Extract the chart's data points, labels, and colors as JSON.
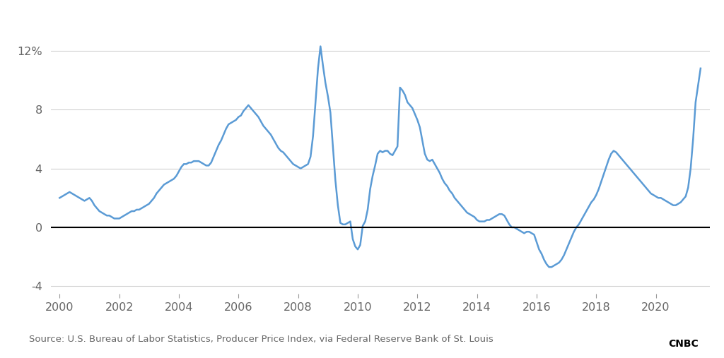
{
  "title": "",
  "source_text": "Source: U.S. Bureau of Labor Statistics, Producer Price Index, via Federal Reserve Bank of St. Louis",
  "line_color": "#5b9bd5",
  "background_color": "#ffffff",
  "ylim": [
    -4.5,
    13.5
  ],
  "yticks": [
    -4,
    0,
    4,
    8,
    12
  ],
  "ytick_labels": [
    "-4",
    "0",
    "4",
    "8",
    "12%"
  ],
  "xlim": [
    1999.7,
    2021.8
  ],
  "xticks": [
    2000,
    2002,
    2004,
    2006,
    2008,
    2010,
    2012,
    2014,
    2016,
    2018,
    2020
  ],
  "grid_color": "#d0d0d0",
  "zero_line_color": "#000000",
  "line_width": 1.8,
  "x": [
    2000.0,
    2000.083,
    2000.167,
    2000.25,
    2000.333,
    2000.417,
    2000.5,
    2000.583,
    2000.667,
    2000.75,
    2000.833,
    2000.917,
    2001.0,
    2001.083,
    2001.167,
    2001.25,
    2001.333,
    2001.417,
    2001.5,
    2001.583,
    2001.667,
    2001.75,
    2001.833,
    2001.917,
    2002.0,
    2002.083,
    2002.167,
    2002.25,
    2002.333,
    2002.417,
    2002.5,
    2002.583,
    2002.667,
    2002.75,
    2002.833,
    2002.917,
    2003.0,
    2003.083,
    2003.167,
    2003.25,
    2003.333,
    2003.417,
    2003.5,
    2003.583,
    2003.667,
    2003.75,
    2003.833,
    2003.917,
    2004.0,
    2004.083,
    2004.167,
    2004.25,
    2004.333,
    2004.417,
    2004.5,
    2004.583,
    2004.667,
    2004.75,
    2004.833,
    2004.917,
    2005.0,
    2005.083,
    2005.167,
    2005.25,
    2005.333,
    2005.417,
    2005.5,
    2005.583,
    2005.667,
    2005.75,
    2005.833,
    2005.917,
    2006.0,
    2006.083,
    2006.167,
    2006.25,
    2006.333,
    2006.417,
    2006.5,
    2006.583,
    2006.667,
    2006.75,
    2006.833,
    2006.917,
    2007.0,
    2007.083,
    2007.167,
    2007.25,
    2007.333,
    2007.417,
    2007.5,
    2007.583,
    2007.667,
    2007.75,
    2007.833,
    2007.917,
    2008.0,
    2008.083,
    2008.167,
    2008.25,
    2008.333,
    2008.417,
    2008.5,
    2008.583,
    2008.667,
    2008.75,
    2008.833,
    2008.917,
    2009.0,
    2009.083,
    2009.167,
    2009.25,
    2009.333,
    2009.417,
    2009.5,
    2009.583,
    2009.667,
    2009.75,
    2009.833,
    2009.917,
    2010.0,
    2010.083,
    2010.167,
    2010.25,
    2010.333,
    2010.417,
    2010.5,
    2010.583,
    2010.667,
    2010.75,
    2010.833,
    2010.917,
    2011.0,
    2011.083,
    2011.167,
    2011.25,
    2011.333,
    2011.417,
    2011.5,
    2011.583,
    2011.667,
    2011.75,
    2011.833,
    2011.917,
    2012.0,
    2012.083,
    2012.167,
    2012.25,
    2012.333,
    2012.417,
    2012.5,
    2012.583,
    2012.667,
    2012.75,
    2012.833,
    2012.917,
    2013.0,
    2013.083,
    2013.167,
    2013.25,
    2013.333,
    2013.417,
    2013.5,
    2013.583,
    2013.667,
    2013.75,
    2013.833,
    2013.917,
    2014.0,
    2014.083,
    2014.167,
    2014.25,
    2014.333,
    2014.417,
    2014.5,
    2014.583,
    2014.667,
    2014.75,
    2014.833,
    2014.917,
    2015.0,
    2015.083,
    2015.167,
    2015.25,
    2015.333,
    2015.417,
    2015.5,
    2015.583,
    2015.667,
    2015.75,
    2015.833,
    2015.917,
    2016.0,
    2016.083,
    2016.167,
    2016.25,
    2016.333,
    2016.417,
    2016.5,
    2016.583,
    2016.667,
    2016.75,
    2016.833,
    2016.917,
    2017.0,
    2017.083,
    2017.167,
    2017.25,
    2017.333,
    2017.417,
    2017.5,
    2017.583,
    2017.667,
    2017.75,
    2017.833,
    2017.917,
    2018.0,
    2018.083,
    2018.167,
    2018.25,
    2018.333,
    2018.417,
    2018.5,
    2018.583,
    2018.667,
    2018.75,
    2018.833,
    2018.917,
    2019.0,
    2019.083,
    2019.167,
    2019.25,
    2019.333,
    2019.417,
    2019.5,
    2019.583,
    2019.667,
    2019.75,
    2019.833,
    2019.917,
    2020.0,
    2020.083,
    2020.167,
    2020.25,
    2020.333,
    2020.417,
    2020.5,
    2020.583,
    2020.667,
    2020.75,
    2020.833,
    2020.917,
    2021.0,
    2021.083,
    2021.167,
    2021.25,
    2021.333,
    2021.5
  ],
  "y": [
    2.0,
    2.1,
    2.2,
    2.3,
    2.4,
    2.3,
    2.2,
    2.1,
    2.0,
    1.9,
    1.8,
    1.9,
    2.0,
    1.8,
    1.5,
    1.3,
    1.1,
    1.0,
    0.9,
    0.8,
    0.8,
    0.7,
    0.6,
    0.6,
    0.6,
    0.7,
    0.8,
    0.9,
    1.0,
    1.1,
    1.1,
    1.2,
    1.2,
    1.3,
    1.4,
    1.5,
    1.6,
    1.8,
    2.0,
    2.3,
    2.5,
    2.7,
    2.9,
    3.0,
    3.1,
    3.2,
    3.3,
    3.5,
    3.8,
    4.1,
    4.3,
    4.3,
    4.4,
    4.4,
    4.5,
    4.5,
    4.5,
    4.4,
    4.3,
    4.2,
    4.2,
    4.4,
    4.8,
    5.2,
    5.6,
    5.9,
    6.3,
    6.7,
    7.0,
    7.1,
    7.2,
    7.3,
    7.5,
    7.6,
    7.9,
    8.1,
    8.3,
    8.1,
    7.9,
    7.7,
    7.5,
    7.2,
    6.9,
    6.7,
    6.5,
    6.3,
    6.0,
    5.7,
    5.4,
    5.2,
    5.1,
    4.9,
    4.7,
    4.5,
    4.3,
    4.2,
    4.1,
    4.0,
    4.1,
    4.2,
    4.3,
    4.8,
    6.2,
    8.5,
    10.8,
    12.3,
    11.0,
    9.8,
    8.9,
    7.8,
    5.5,
    3.2,
    1.5,
    0.3,
    0.2,
    0.2,
    0.3,
    0.4,
    -0.8,
    -1.3,
    -1.5,
    -1.2,
    0.1,
    0.4,
    1.2,
    2.6,
    3.5,
    4.2,
    5.0,
    5.2,
    5.1,
    5.2,
    5.2,
    5.0,
    4.9,
    5.2,
    5.5,
    9.5,
    9.3,
    9.0,
    8.5,
    8.3,
    8.1,
    7.7,
    7.3,
    6.8,
    5.9,
    5.0,
    4.6,
    4.5,
    4.6,
    4.3,
    4.0,
    3.7,
    3.3,
    3.0,
    2.8,
    2.5,
    2.3,
    2.0,
    1.8,
    1.6,
    1.4,
    1.2,
    1.0,
    0.9,
    0.8,
    0.7,
    0.5,
    0.4,
    0.4,
    0.4,
    0.5,
    0.5,
    0.6,
    0.7,
    0.8,
    0.9,
    0.9,
    0.8,
    0.5,
    0.2,
    0.0,
    0.0,
    -0.1,
    -0.2,
    -0.3,
    -0.4,
    -0.3,
    -0.3,
    -0.4,
    -0.5,
    -1.0,
    -1.5,
    -1.8,
    -2.2,
    -2.5,
    -2.7,
    -2.7,
    -2.6,
    -2.5,
    -2.4,
    -2.2,
    -1.9,
    -1.5,
    -1.1,
    -0.7,
    -0.3,
    0.0,
    0.2,
    0.5,
    0.8,
    1.1,
    1.4,
    1.7,
    1.9,
    2.2,
    2.6,
    3.1,
    3.6,
    4.1,
    4.6,
    5.0,
    5.2,
    5.1,
    4.9,
    4.7,
    4.5,
    4.3,
    4.1,
    3.9,
    3.7,
    3.5,
    3.3,
    3.1,
    2.9,
    2.7,
    2.5,
    2.3,
    2.2,
    2.1,
    2.0,
    2.0,
    1.9,
    1.8,
    1.7,
    1.6,
    1.5,
    1.5,
    1.6,
    1.7,
    1.9,
    2.1,
    2.7,
    4.0,
    6.0,
    8.5,
    10.8
  ]
}
